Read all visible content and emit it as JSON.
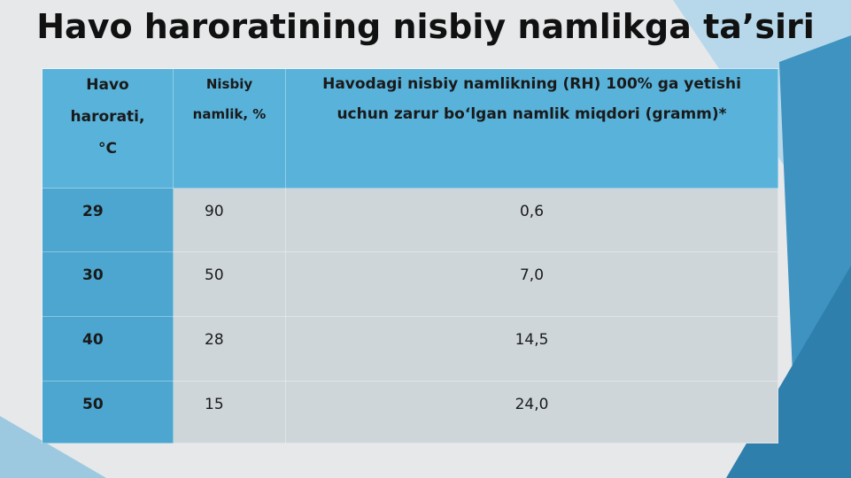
{
  "title": "Havo haroratining nisbiy namlikga ta’siri",
  "table": {
    "header": [
      [
        "Havo",
        "harorati,",
        "°C"
      ],
      [
        "Nisbiy",
        "namlik, %"
      ],
      [
        "Havodagi nisbiy namlikning (RH) 100% ga yetishi",
        "uchun zarur bo‘lgan namlik miqdori (gramm)*"
      ]
    ],
    "rows": [
      [
        "29",
        "90",
        "0,6"
      ],
      [
        "30",
        "50",
        "7,0"
      ],
      [
        "40",
        "28",
        "14,5"
      ],
      [
        "50",
        "15",
        "24,0"
      ]
    ]
  }
}
